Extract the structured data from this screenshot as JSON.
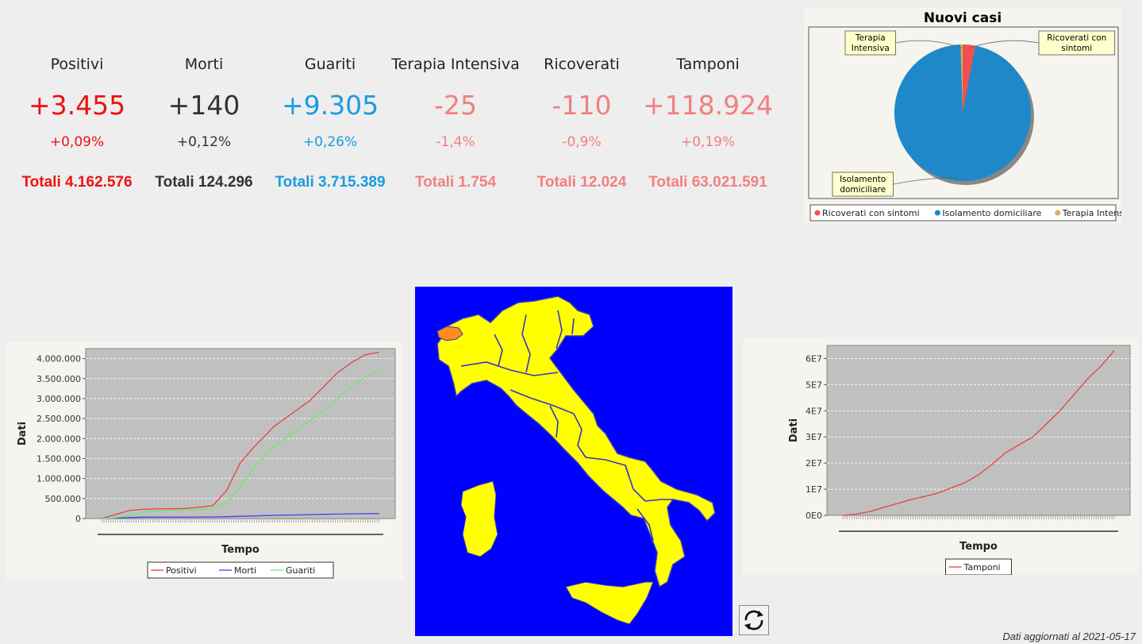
{
  "stats": [
    {
      "label": "Positivi",
      "delta": "+3.455",
      "pct": "+0,09%",
      "total": "Totali 4.162.576",
      "color": "#ee1111"
    },
    {
      "label": "Morti",
      "delta": "+140",
      "pct": "+0,12%",
      "total": "Totali 124.296",
      "color": "#333333"
    },
    {
      "label": "Guariti",
      "delta": "+9.305",
      "pct": "+0,26%",
      "total": "Totali 3.715.389",
      "color": "#1a9be0"
    },
    {
      "label": "Terapia Intensiva",
      "delta": "-25",
      "pct": "-1,4%",
      "total": "Totali 1.754",
      "color": "#f08080"
    },
    {
      "label": "Ricoverati",
      "delta": "-110",
      "pct": "-0,9%",
      "total": "Totali 12.024",
      "color": "#f08080"
    },
    {
      "label": "Tamponi",
      "delta": "+118.924",
      "pct": "+0,19%",
      "total": "Totali 63.021.591",
      "color": "#f08080"
    }
  ],
  "footer": "Dati aggiornati al 2021-05-17",
  "refresh_icon": "refresh-icon",
  "map": {
    "background": "#0000ff",
    "land": "#ffff00",
    "highlight": "#ff8c1a",
    "borders": "#3333cc"
  },
  "chart_data": [
    {
      "type": "pie",
      "title": "Nuovi casi",
      "categories": [
        "Ricoverati con sintomi",
        "Isolamento domiciliare",
        "Terapia Intensiva"
      ],
      "values": [
        3.0,
        96.5,
        0.5
      ],
      "colors": [
        "#f05050",
        "#1e88c8",
        "#d8b060"
      ],
      "labels": {
        "ric": "Ricoverati con sintomi",
        "iso": "Isolamento domiciliare",
        "ti": "Terapia Intensiva"
      },
      "legend": "bottom"
    },
    {
      "type": "line",
      "xlabel": "Tempo",
      "ylabel": "Dati",
      "ylim": [
        0,
        4250000
      ],
      "yticks": [
        "0",
        "500.000",
        "1.000.000",
        "1.500.000",
        "2.000.000",
        "2.500.000",
        "3.000.000",
        "3.500.000",
        "4.000.000"
      ],
      "x": [
        0,
        5,
        10,
        15,
        20,
        25,
        30,
        35,
        40,
        45,
        50,
        55,
        60,
        62,
        65,
        68,
        70,
        75,
        80,
        85,
        90,
        95,
        100
      ],
      "series": [
        {
          "name": "Positivi",
          "color": "#e84040",
          "values": [
            0,
            100000,
            200000,
            230000,
            240000,
            245000,
            250000,
            280000,
            320000,
            700000,
            1400000,
            1800000,
            2150000,
            2300000,
            2450000,
            2600000,
            2700000,
            2950000,
            3300000,
            3650000,
            3900000,
            4100000,
            4160000
          ]
        },
        {
          "name": "Morti",
          "color": "#4444ee",
          "values": [
            0,
            10000,
            25000,
            33000,
            35000,
            35000,
            36000,
            37000,
            40000,
            45000,
            55000,
            65000,
            75000,
            80000,
            85000,
            88000,
            90000,
            98000,
            105000,
            112000,
            117000,
            122000,
            124000
          ]
        },
        {
          "name": "Guariti",
          "color": "#66ee66",
          "values": [
            0,
            20000,
            90000,
            150000,
            180000,
            200000,
            210000,
            220000,
            250000,
            400000,
            800000,
            1300000,
            1650000,
            1800000,
            1950000,
            2100000,
            2200000,
            2450000,
            2700000,
            3000000,
            3300000,
            3550000,
            3715000
          ]
        }
      ],
      "legend": "bottom"
    },
    {
      "type": "line",
      "xlabel": "Tempo",
      "ylabel": "Dati",
      "ylim": [
        0,
        65000000
      ],
      "yticks": [
        "0E0",
        "1E7",
        "2E7",
        "3E7",
        "4E7",
        "5E7",
        "6E7"
      ],
      "x": [
        0,
        5,
        10,
        15,
        20,
        25,
        30,
        35,
        40,
        45,
        50,
        55,
        60,
        65,
        70,
        75,
        80,
        85,
        90,
        95,
        100
      ],
      "series": [
        {
          "name": "Tamponi",
          "color": "#e84040",
          "values": [
            0,
            500000,
            1500000,
            3000000,
            4500000,
            6000000,
            7200000,
            8500000,
            10500000,
            12500000,
            15500000,
            19500000,
            24000000,
            27000000,
            30000000,
            35000000,
            40000000,
            46000000,
            52000000,
            57000000,
            63000000
          ]
        }
      ],
      "legend": "bottom"
    }
  ]
}
